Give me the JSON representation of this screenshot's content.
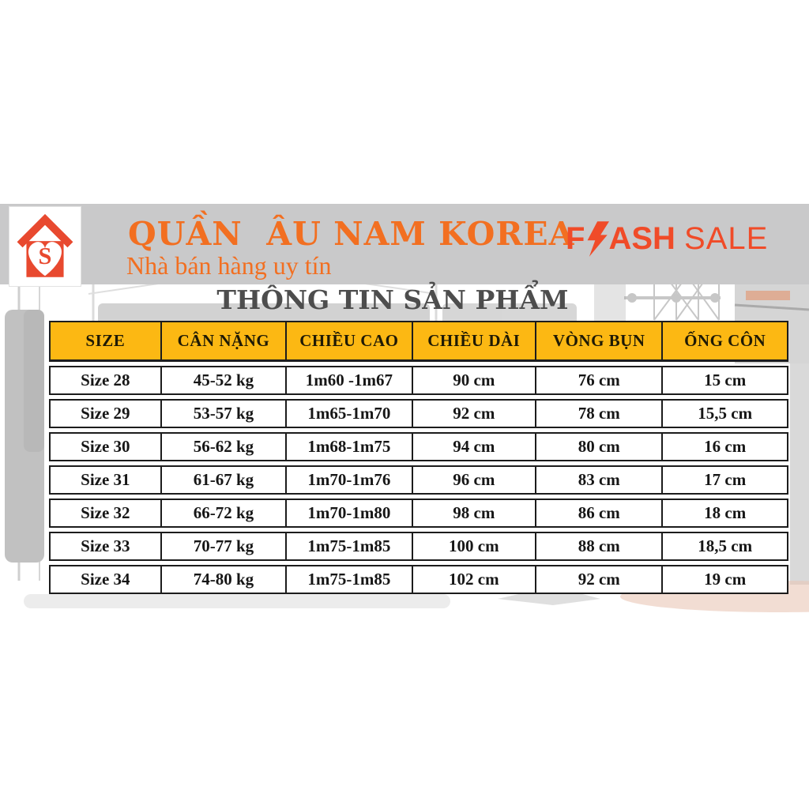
{
  "page": {
    "background": "#ffffff"
  },
  "banner": {
    "band_color": "#c9c9ca",
    "logo": {
      "letter": "S",
      "color": "#e8492f",
      "box_color": "#ffffff"
    },
    "title": "QUẦN  ÂU NAM KOREA",
    "title_color": "#f26f21",
    "subtitle": "Nhà bán hàng uy tín",
    "flash_sale": {
      "f": "F",
      "ash": "ASH",
      "space": " ",
      "sale": "SALE",
      "color": "#f04b28"
    }
  },
  "section": {
    "title": "THÔNG TIN SẢN PHẨM",
    "color": "#4d4d4d"
  },
  "size_table": {
    "header_bg": "#fcb813",
    "border_color": "#1c1c1c",
    "columns": [
      "SIZE",
      "CÂN NẶNG",
      "CHIỀU CAO",
      "CHIỀU DÀI",
      "VÒNG BỤN",
      "ỐNG CÔN"
    ],
    "rows": [
      [
        "Size 28",
        "45-52 kg",
        "1m60 -1m67",
        "90 cm",
        "76 cm",
        "15 cm"
      ],
      [
        "Size 29",
        "53-57 kg",
        "1m65-1m70",
        "92 cm",
        "78 cm",
        "15,5 cm"
      ],
      [
        "Size 30",
        "56-62 kg",
        "1m68-1m75",
        "94 cm",
        "80 cm",
        "16 cm"
      ],
      [
        "Size 31",
        "61-67 kg",
        "1m70-1m76",
        "96 cm",
        "83 cm",
        "17 cm"
      ],
      [
        "Size 32",
        "66-72 kg",
        "1m70-1m80",
        "98 cm",
        "86 cm",
        "18 cm"
      ],
      [
        "Size 33",
        "70-77 kg",
        "1m75-1m85",
        "100 cm",
        "88 cm",
        "18,5 cm"
      ],
      [
        "Size 34",
        "74-80 kg",
        "1m75-1m85",
        "102 cm",
        "92 cm",
        "19 cm"
      ]
    ]
  }
}
